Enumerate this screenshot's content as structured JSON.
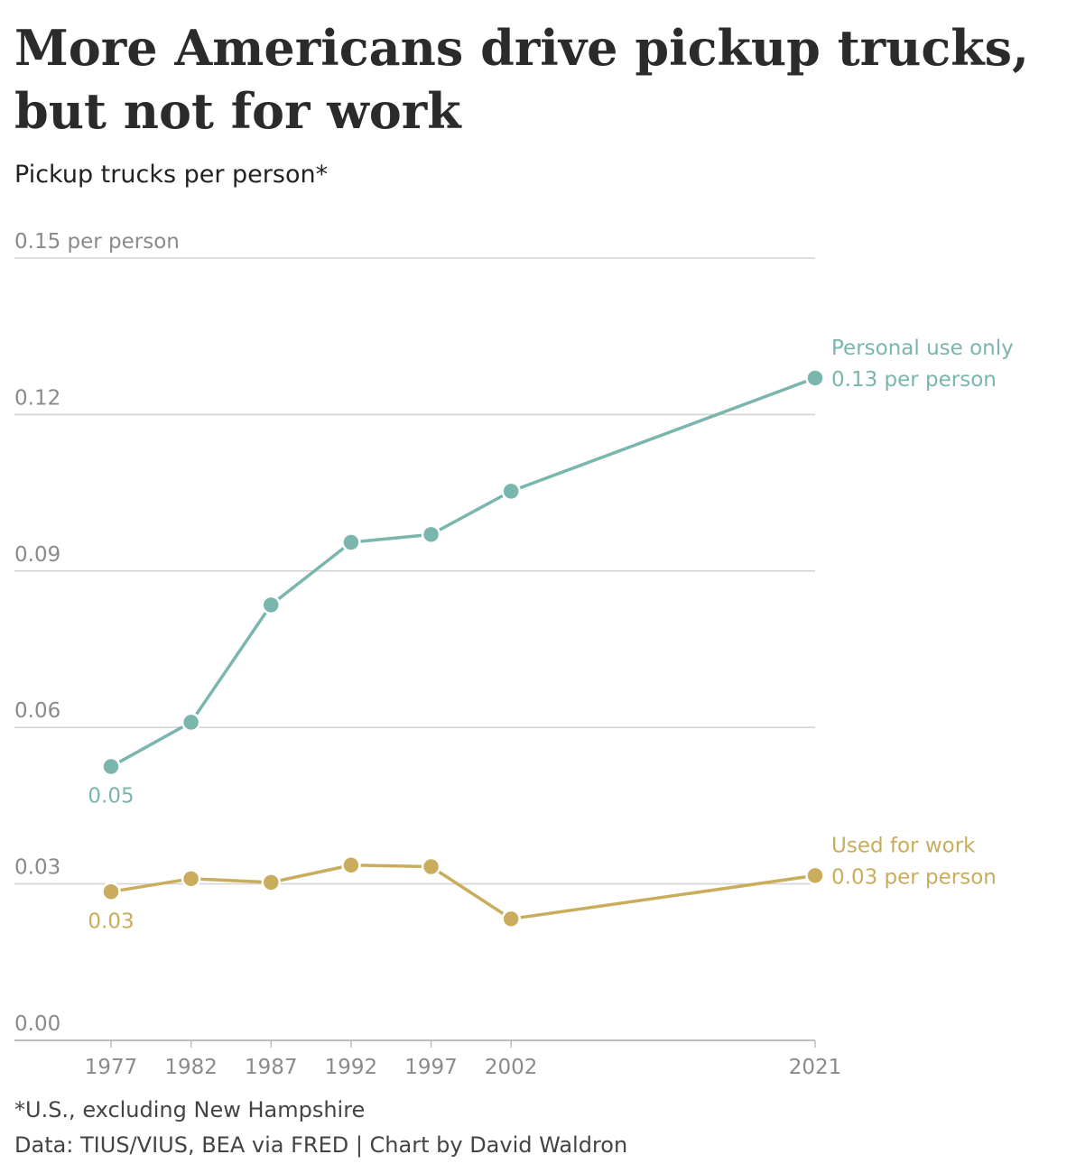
{
  "title": "More Americans drive pickup trucks, but not for work",
  "subtitle": "Pickup trucks per person*",
  "footnote": "*U.S., excluding New Hampshire",
  "source": "Data: TIUS/VIUS, BEA via FRED | Chart by David Waldron",
  "colors": {
    "personal": "#7ab5ae",
    "work": "#c9ad5c",
    "grid": "#d4d4d4",
    "tick": "#8a8a8a"
  },
  "chart_data": {
    "type": "line",
    "x": [
      1977,
      1982,
      1987,
      1992,
      1997,
      2002,
      2021
    ],
    "ylim": [
      0,
      0.15
    ],
    "y_ticks": [
      0,
      0.03,
      0.06,
      0.09,
      0.12,
      0.15
    ],
    "y_tick_labels": [
      "0.00",
      "0.03",
      "0.06",
      "0.09",
      "0.12",
      "0.15 per person"
    ],
    "x_tick_labels": [
      "1977",
      "1982",
      "1987",
      "1992",
      "1997",
      "2002",
      "2021"
    ],
    "grid": true,
    "series": [
      {
        "name": "Personal use only",
        "values": [
          0.0525,
          0.061,
          0.0835,
          0.0955,
          0.097,
          0.1053,
          0.127
        ],
        "start_label": "0.05",
        "end_label": "0.13 per person"
      },
      {
        "name": "Used for work",
        "values": [
          0.0285,
          0.031,
          0.0303,
          0.0336,
          0.0333,
          0.0233,
          0.0316
        ],
        "start_label": "0.03",
        "end_label": "0.03 per person"
      }
    ]
  }
}
